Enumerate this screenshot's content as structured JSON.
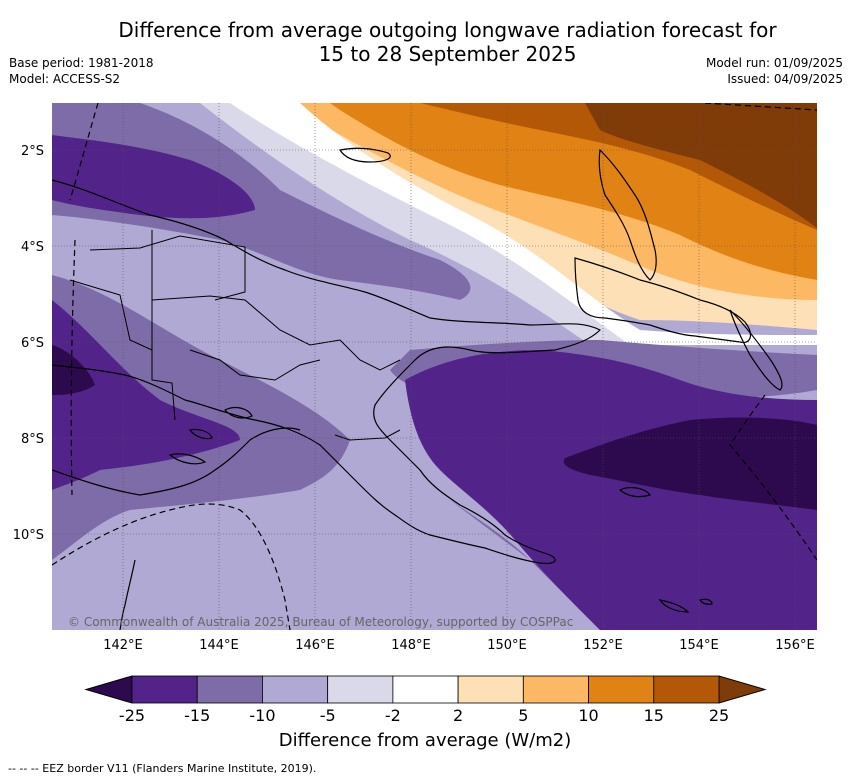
{
  "header": {
    "title_line1": "Difference from average outgoing longwave radiation forecast for",
    "title_line2": "15 to 28 September 2025",
    "base_period": "Base period: 1981-2018",
    "model": "Model: ACCESS-S2",
    "model_run": "Model run: 01/09/2025",
    "issued": "Issued: 04/09/2025"
  },
  "map": {
    "copyright": "© Commonwealth of Australia 2025, Bureau of Meteorology, supported by COSPPac",
    "lat_labels": [
      "2°S",
      "4°S",
      "6°S",
      "8°S",
      "10°S"
    ],
    "lon_labels": [
      "142°E",
      "144°E",
      "146°E",
      "148°E",
      "150°E",
      "152°E",
      "154°E",
      "156°E"
    ],
    "colors": {
      "neg25": "#2d0a4e",
      "neg15": "#52248a",
      "neg10": "#7e6ca9",
      "neg5": "#b0a9d3",
      "neg2": "#d9d9ea",
      "zero": "#ffffff",
      "pos2": "#fee0b6",
      "pos5": "#fdb863",
      "pos10": "#e08214",
      "pos15": "#b35806",
      "pos25": "#7f3b08"
    }
  },
  "colorbar": {
    "ticks": [
      "-25",
      "-15",
      "-10",
      "-5",
      "-2",
      "2",
      "5",
      "10",
      "15",
      "25"
    ],
    "colors": [
      "#52248a",
      "#7e6ca9",
      "#b0a9d3",
      "#d9d9ea",
      "#ffffff",
      "#fee0b6",
      "#fdb863",
      "#e08214",
      "#b35806"
    ],
    "low_extend": "#2d0a4e",
    "high_extend": "#7f3b08",
    "label": "Difference from average (W/m2)"
  },
  "footnote": "-- -- -- EEZ border V11 (Flanders Marine Institute, 2019)."
}
